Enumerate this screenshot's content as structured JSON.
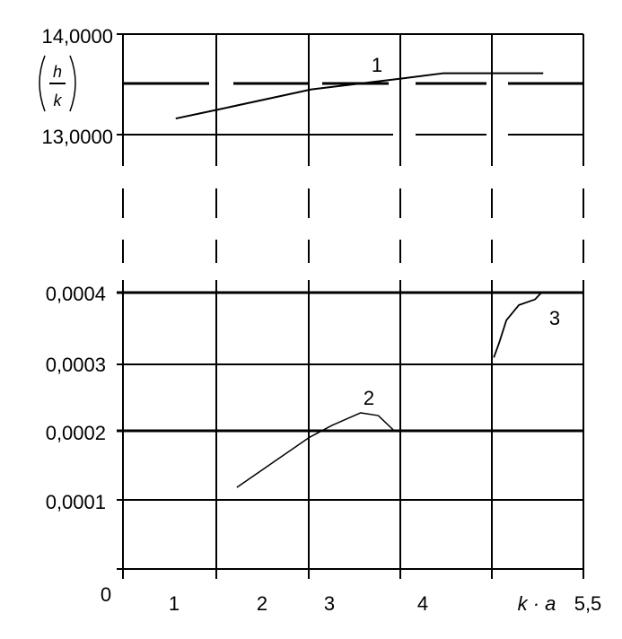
{
  "chart_data": {
    "type": "line",
    "xlabel": "k · a",
    "ylabel_top": {
      "numerator": "h",
      "denominator": "k"
    },
    "x_tick_labels": [
      "0",
      "1",
      "2",
      "3",
      "4",
      "5,5"
    ],
    "xlim": [
      0,
      5.5
    ],
    "top_panel": {
      "ylim": [
        13.0,
        14.0
      ],
      "y_tick_labels": [
        "14,0000",
        "13,0000"
      ],
      "series": [
        {
          "name": "1",
          "x": [
            0.63,
            1.14,
            2.25,
            3.35,
            3.82,
            5.02
          ],
          "y": [
            13.16,
            13.25,
            13.45,
            13.56,
            13.61,
            13.61
          ]
        }
      ]
    },
    "bottom_panel": {
      "ylim": [
        0,
        0.0004
      ],
      "y_tick_labels": [
        "0,0004",
        "0,0003",
        "0,0002",
        "0,0001"
      ],
      "series": [
        {
          "name": "2",
          "x": [
            1.36,
            2.22,
            2.5,
            2.84,
            3.05,
            3.24
          ],
          "y": [
            0.000118,
            0.00019,
            0.000208,
            0.000226,
            0.000222,
            0.0002
          ]
        },
        {
          "name": "3",
          "x": [
            4.43,
            4.49,
            4.58,
            4.73,
            4.92,
            5.0
          ],
          "y": [
            0.000306,
            0.000326,
            0.00036,
            0.000382,
            0.00039,
            0.0004
          ]
        }
      ]
    },
    "grid": true,
    "axis_break": true
  }
}
